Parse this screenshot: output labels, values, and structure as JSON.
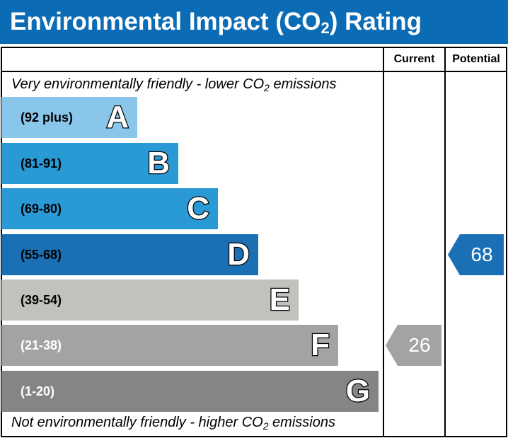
{
  "header": {
    "title_main": "Environmental Impact (CO",
    "title_sub": "2",
    "title_end": ") Rating"
  },
  "columns": {
    "current": "Current",
    "potential": "Potential"
  },
  "captions": {
    "top_main": "Very environmentally friendly - lower CO",
    "top_sub": "2",
    "top_end": " emissions",
    "bottom_main": "Not environmentally friendly - higher CO",
    "bottom_sub": "2",
    "bottom_end": " emissions"
  },
  "chart_data": {
    "type": "table",
    "bands": [
      {
        "letter": "A",
        "range": "(92 plus)",
        "color": "#8ac6ea",
        "text_color": "#000000"
      },
      {
        "letter": "B",
        "range": "(81-91)",
        "color": "#2a9ad6",
        "text_color": "#000000"
      },
      {
        "letter": "C",
        "range": "(69-80)",
        "color": "#2a9ad6",
        "text_color": "#000000"
      },
      {
        "letter": "D",
        "range": "(55-68)",
        "color": "#1b6fb5",
        "text_color": "#000000"
      },
      {
        "letter": "E",
        "range": "(39-54)",
        "color": "#c2c1be",
        "text_color": "#000000"
      },
      {
        "letter": "F",
        "range": "(21-38)",
        "color": "#a4a3a1",
        "text_color": "#ffffff"
      },
      {
        "letter": "G",
        "range": "(1-20)",
        "color": "#858585",
        "text_color": "#ffffff"
      }
    ],
    "current": {
      "value": "26",
      "band": "F",
      "color": "#a4a3a1"
    },
    "potential": {
      "value": "68",
      "band": "D",
      "color": "#1b6fb5"
    }
  }
}
